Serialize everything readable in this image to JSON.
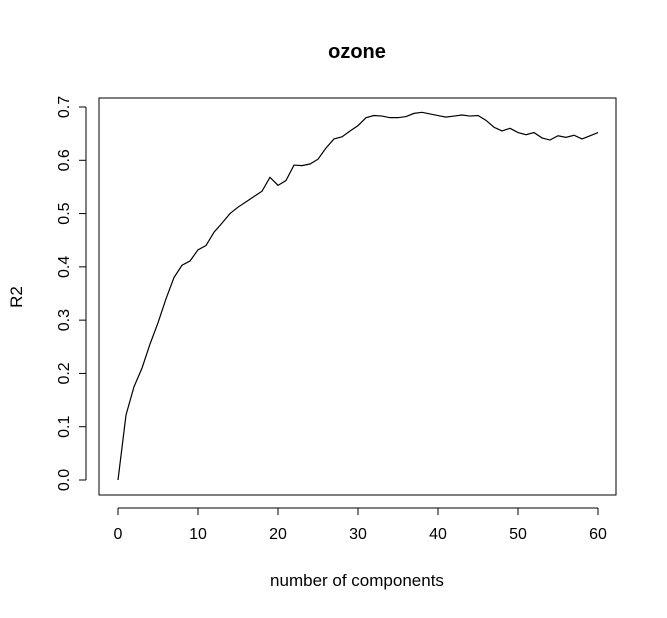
{
  "chart_data": {
    "type": "line",
    "title": "ozone",
    "xlabel": "number of components",
    "ylabel": "R2",
    "xlim": [
      0,
      60
    ],
    "ylim": [
      0,
      0.7
    ],
    "x_ticks": [
      "0",
      "10",
      "20",
      "30",
      "40",
      "50",
      "60"
    ],
    "y_ticks": [
      "0.0",
      "0.1",
      "0.2",
      "0.3",
      "0.4",
      "0.5",
      "0.6",
      "0.7"
    ],
    "grid": false,
    "legend": "none",
    "line_color": "#000000",
    "series": [
      {
        "x": [
          0,
          1,
          2,
          3,
          4,
          5,
          6,
          7,
          8,
          9,
          10,
          11,
          12,
          13,
          14,
          15,
          16,
          17,
          18,
          19,
          20,
          21,
          22,
          23,
          24,
          25,
          26,
          27,
          28,
          29,
          30,
          31,
          32,
          33,
          34,
          35,
          36,
          37,
          38,
          39,
          40,
          41,
          42,
          43,
          44,
          45,
          46,
          47,
          48,
          49,
          50,
          51,
          52,
          53,
          54,
          55,
          56,
          57,
          58,
          59,
          60
        ],
        "values": [
          0.0,
          0.122,
          0.175,
          0.21,
          0.255,
          0.295,
          0.34,
          0.38,
          0.403,
          0.411,
          0.432,
          0.44,
          0.465,
          0.482,
          0.5,
          0.512,
          0.522,
          0.532,
          0.542,
          0.568,
          0.553,
          0.562,
          0.591,
          0.59,
          0.593,
          0.602,
          0.623,
          0.64,
          0.644,
          0.655,
          0.665,
          0.68,
          0.684,
          0.683,
          0.68,
          0.68,
          0.682,
          0.688,
          0.69,
          0.687,
          0.684,
          0.681,
          0.683,
          0.685,
          0.683,
          0.684,
          0.675,
          0.662,
          0.655,
          0.66,
          0.652,
          0.648,
          0.652,
          0.642,
          0.638,
          0.646,
          0.643,
          0.647,
          0.64,
          0.646,
          0.652
        ]
      }
    ]
  }
}
